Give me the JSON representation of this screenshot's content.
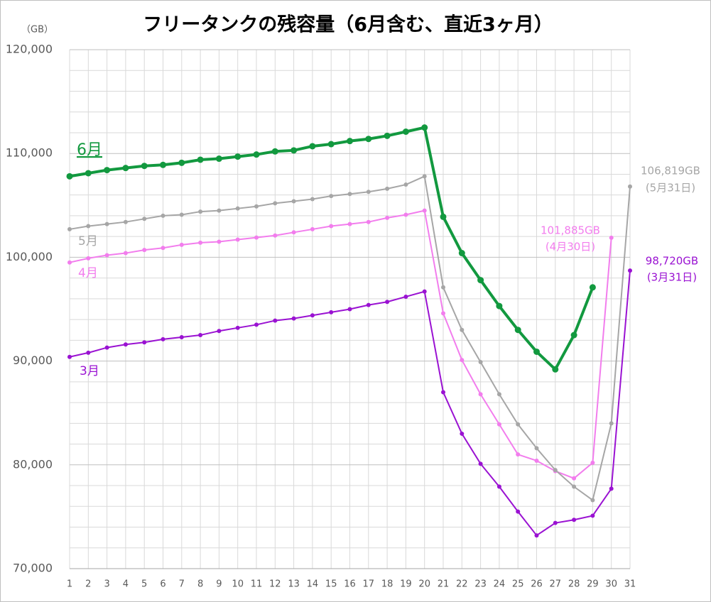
{
  "chart_data": {
    "type": "line",
    "title": "フリータンクの残容量（6月含む、直近3ヶ月）",
    "y_unit_label": "（GB）",
    "x": [
      1,
      2,
      3,
      4,
      5,
      6,
      7,
      8,
      9,
      10,
      11,
      12,
      13,
      14,
      15,
      16,
      17,
      18,
      19,
      20,
      21,
      22,
      23,
      24,
      25,
      26,
      27,
      28,
      29,
      30,
      31
    ],
    "xlim": [
      1,
      31
    ],
    "xticks": [
      1,
      2,
      3,
      4,
      5,
      6,
      7,
      8,
      9,
      10,
      11,
      12,
      13,
      14,
      15,
      16,
      17,
      18,
      19,
      20,
      21,
      22,
      23,
      24,
      25,
      26,
      27,
      28,
      29,
      30,
      31
    ],
    "ylim": [
      70000,
      120000
    ],
    "yticks": [
      {
        "value": 70000,
        "label": "70,000"
      },
      {
        "value": 80000,
        "label": "80,000"
      },
      {
        "value": 90000,
        "label": "90,000"
      },
      {
        "value": 100000,
        "label": "100,000"
      },
      {
        "value": 110000,
        "label": "110,000"
      },
      {
        "value": 120000,
        "label": "120,000"
      }
    ],
    "y_minor_grid": [
      72000,
      74000,
      76000,
      78000,
      82000,
      84000,
      86000,
      88000,
      92000,
      94000,
      96000,
      98000,
      102000,
      104000,
      106000,
      108000,
      112000,
      114000,
      116000,
      118000
    ],
    "grid": true,
    "series": [
      {
        "name": "6月",
        "color": "#12993f",
        "values": [
          107800,
          108100,
          108400,
          108600,
          108800,
          108900,
          109100,
          109400,
          109500,
          109700,
          109900,
          110200,
          110300,
          110700,
          110900,
          111200,
          111400,
          111700,
          112100,
          112500,
          103900,
          100400,
          97800,
          95300,
          93000,
          90900,
          89200,
          92500,
          97100,
          null,
          null
        ]
      },
      {
        "name": "5月",
        "color": "#a6a6a6",
        "values": [
          102700,
          103000,
          103200,
          103400,
          103700,
          104000,
          104100,
          104400,
          104500,
          104700,
          104900,
          105200,
          105400,
          105600,
          105900,
          106100,
          106300,
          106600,
          107000,
          107800,
          97100,
          93000,
          89900,
          86800,
          83900,
          81600,
          79500,
          77900,
          76600,
          84000,
          106819
        ]
      },
      {
        "name": "4月",
        "color": "#f27ded",
        "values": [
          99500,
          99900,
          100200,
          100400,
          100700,
          100900,
          101200,
          101400,
          101500,
          101700,
          101900,
          102100,
          102400,
          102700,
          103000,
          103200,
          103400,
          103800,
          104100,
          104500,
          94600,
          90100,
          86800,
          83900,
          81000,
          80400,
          79400,
          78700,
          80200,
          101885,
          null
        ]
      },
      {
        "name": "3月",
        "color": "#9a12d2",
        "values": [
          90400,
          90800,
          91300,
          91600,
          91800,
          92100,
          92300,
          92500,
          92900,
          93200,
          93500,
          93900,
          94100,
          94400,
          94700,
          95000,
          95400,
          95700,
          96200,
          96700,
          87000,
          83000,
          80100,
          77900,
          75500,
          73200,
          74400,
          74700,
          75100,
          77700,
          98720
        ]
      }
    ],
    "annotations": [
      "106,819GB",
      "(5月31日)",
      "101,885GB",
      "(4月30日)",
      "98,720GB",
      "(3月31日)"
    ]
  }
}
